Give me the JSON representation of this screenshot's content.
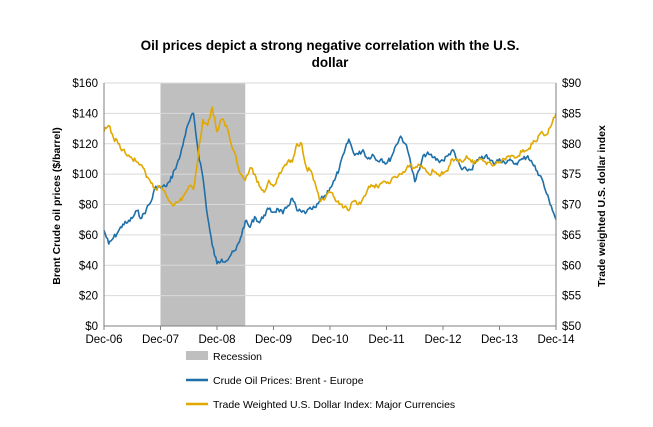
{
  "chart_data": {
    "type": "line",
    "title": "Oil prices depict a strong negative correlation with the U.S. dollar",
    "title_lines": [
      "Oil prices depict a strong negative correlation with the U.S.",
      "dollar"
    ],
    "ylabel": "Brent Crude oil prices ($/barrel)",
    "y2label": "Trade weighted U.S. dollar index",
    "ylim": [
      0,
      160
    ],
    "y2lim": [
      50,
      90
    ],
    "xlim": [
      "2006-12",
      "2014-12"
    ],
    "x_tick_labels": [
      "Dec-06",
      "Dec-07",
      "Dec-08",
      "Dec-09",
      "Dec-10",
      "Dec-11",
      "Dec-12",
      "Dec-13",
      "Dec-14"
    ],
    "y_tick_labels": [
      "$0",
      "$20",
      "$40",
      "$60",
      "$80",
      "$100",
      "$120",
      "$140",
      "$160"
    ],
    "y2_tick_labels": [
      "$50",
      "$55",
      "$60",
      "$65",
      "$70",
      "$75",
      "$80",
      "$85",
      "$90"
    ],
    "grid": "horizontal",
    "legend_position": "bottom",
    "recession": {
      "name": "Recession",
      "start": "2007-12",
      "end": "2009-06",
      "color": "#bfbfbf"
    },
    "series": [
      {
        "name": "Crude Oil Prices: Brent - Europe",
        "axis": "left",
        "color": "#1f6fa8",
        "x": [
          "2006-12",
          "2007-01",
          "2007-02",
          "2007-03",
          "2007-04",
          "2007-05",
          "2007-06",
          "2007-07",
          "2007-08",
          "2007-09",
          "2007-10",
          "2007-11",
          "2007-12",
          "2008-01",
          "2008-02",
          "2008-03",
          "2008-04",
          "2008-05",
          "2008-06",
          "2008-07",
          "2008-08",
          "2008-09",
          "2008-10",
          "2008-11",
          "2008-12",
          "2009-01",
          "2009-02",
          "2009-03",
          "2009-04",
          "2009-05",
          "2009-06",
          "2009-07",
          "2009-08",
          "2009-09",
          "2009-10",
          "2009-11",
          "2009-12",
          "2010-01",
          "2010-02",
          "2010-03",
          "2010-04",
          "2010-05",
          "2010-06",
          "2010-07",
          "2010-08",
          "2010-09",
          "2010-10",
          "2010-11",
          "2010-12",
          "2011-01",
          "2011-02",
          "2011-03",
          "2011-04",
          "2011-05",
          "2011-06",
          "2011-07",
          "2011-08",
          "2011-09",
          "2011-10",
          "2011-11",
          "2011-12",
          "2012-01",
          "2012-02",
          "2012-03",
          "2012-04",
          "2012-05",
          "2012-06",
          "2012-07",
          "2012-08",
          "2012-09",
          "2012-10",
          "2012-11",
          "2012-12",
          "2013-01",
          "2013-02",
          "2013-03",
          "2013-04",
          "2013-05",
          "2013-06",
          "2013-07",
          "2013-08",
          "2013-09",
          "2013-10",
          "2013-11",
          "2013-12",
          "2014-01",
          "2014-02",
          "2014-03",
          "2014-04",
          "2014-05",
          "2014-06",
          "2014-07",
          "2014-08",
          "2014-09",
          "2014-10",
          "2014-11",
          "2014-12"
        ],
        "values": [
          63,
          54,
          58,
          62,
          67,
          68,
          71,
          76,
          71,
          77,
          82,
          92,
          91,
          92,
          95,
          103,
          110,
          123,
          134,
          140,
          115,
          98,
          72,
          53,
          41,
          44,
          43,
          47,
          50,
          58,
          69,
          65,
          72,
          68,
          73,
          77,
          75,
          77,
          74,
          79,
          84,
          76,
          75,
          75,
          77,
          78,
          83,
          86,
          91,
          96,
          104,
          114,
          123,
          114,
          113,
          116,
          110,
          113,
          109,
          110,
          107,
          111,
          119,
          125,
          120,
          110,
          95,
          103,
          113,
          113,
          111,
          109,
          109,
          112,
          116,
          109,
          103,
          103,
          103,
          108,
          110,
          112,
          109,
          107,
          110,
          108,
          109,
          107,
          108,
          110,
          112,
          107,
          102,
          97,
          87,
          79,
          70
        ]
      },
      {
        "name": "Trade Weighted U.S. Dollar Index: Major Currencies",
        "axis": "right",
        "color": "#e0a800",
        "x": [
          "2006-12",
          "2007-01",
          "2007-02",
          "2007-03",
          "2007-04",
          "2007-05",
          "2007-06",
          "2007-07",
          "2007-08",
          "2007-09",
          "2007-10",
          "2007-11",
          "2007-12",
          "2008-01",
          "2008-02",
          "2008-03",
          "2008-04",
          "2008-05",
          "2008-06",
          "2008-07",
          "2008-08",
          "2008-09",
          "2008-10",
          "2008-11",
          "2008-12",
          "2009-01",
          "2009-02",
          "2009-03",
          "2009-04",
          "2009-05",
          "2009-06",
          "2009-07",
          "2009-08",
          "2009-09",
          "2009-10",
          "2009-11",
          "2009-12",
          "2010-01",
          "2010-02",
          "2010-03",
          "2010-04",
          "2010-05",
          "2010-06",
          "2010-07",
          "2010-08",
          "2010-09",
          "2010-10",
          "2010-11",
          "2010-12",
          "2011-01",
          "2011-02",
          "2011-03",
          "2011-04",
          "2011-05",
          "2011-06",
          "2011-07",
          "2011-08",
          "2011-09",
          "2011-10",
          "2011-11",
          "2011-12",
          "2012-01",
          "2012-02",
          "2012-03",
          "2012-04",
          "2012-05",
          "2012-06",
          "2012-07",
          "2012-08",
          "2012-09",
          "2012-10",
          "2012-11",
          "2012-12",
          "2013-01",
          "2013-02",
          "2013-03",
          "2013-04",
          "2013-05",
          "2013-06",
          "2013-07",
          "2013-08",
          "2013-09",
          "2013-10",
          "2013-11",
          "2013-12",
          "2014-01",
          "2014-02",
          "2014-03",
          "2014-04",
          "2014-05",
          "2014-06",
          "2014-07",
          "2014-08",
          "2014-09",
          "2014-10",
          "2014-11",
          "2014-12"
        ],
        "values": [
          82,
          83,
          81,
          80,
          79,
          78,
          77.5,
          77,
          76.5,
          74.5,
          73.5,
          72.5,
          73,
          72,
          70.5,
          70,
          70.5,
          71.5,
          73,
          72.5,
          78,
          84,
          83,
          86,
          82,
          84,
          83,
          80,
          78,
          75,
          74,
          76,
          75,
          73,
          72,
          74,
          73,
          74.5,
          76,
          77,
          77,
          80,
          80,
          76,
          75.5,
          73,
          70.5,
          71,
          72,
          71,
          70,
          69.5,
          69,
          70.5,
          70,
          71,
          72.5,
          73,
          73,
          73.5,
          73.5,
          74,
          74.5,
          75,
          75.5,
          76.5,
          76,
          76.5,
          76,
          75,
          75.5,
          75,
          75,
          75.5,
          77.5,
          77.5,
          77,
          78,
          77,
          77,
          77.5,
          77,
          77,
          76.5,
          77,
          77.5,
          78,
          78,
          78,
          79,
          79,
          80,
          80.5,
          82,
          81.5,
          83,
          85
        ]
      }
    ]
  }
}
